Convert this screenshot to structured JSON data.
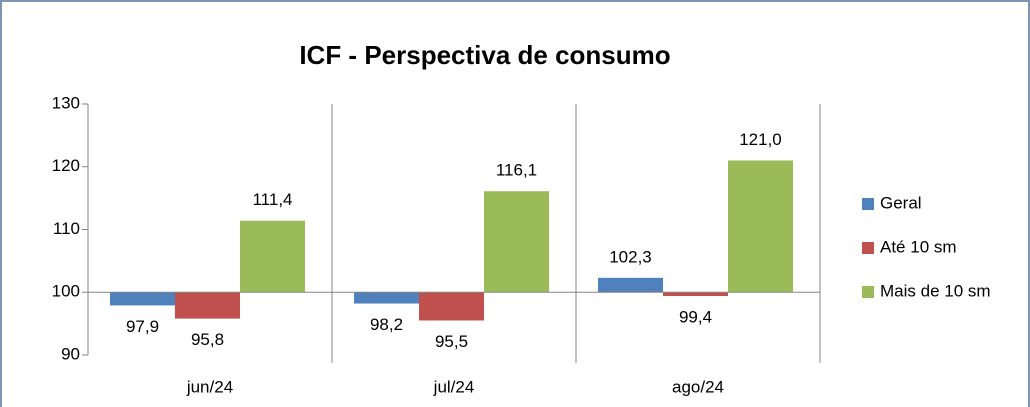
{
  "chart_data": {
    "type": "bar",
    "title": "ICF - Perspectiva de consumo",
    "categories": [
      "jun/24",
      "jul/24",
      "ago/24"
    ],
    "series": [
      {
        "name": "Geral",
        "color": "#4f81bd",
        "values": [
          97.9,
          98.2,
          102.3
        ],
        "value_labels": [
          "97,9",
          "98,2",
          "102,3"
        ]
      },
      {
        "name": "Até 10 sm",
        "color": "#c0504d",
        "values": [
          95.8,
          95.5,
          99.4
        ],
        "value_labels": [
          "95,8",
          "95,5",
          "99,4"
        ]
      },
      {
        "name": "Mais de 10 sm",
        "color": "#9bbb59",
        "values": [
          111.4,
          116.1,
          121.0
        ],
        "value_labels": [
          "111,4",
          "116,1",
          "121,0"
        ]
      }
    ],
    "ylim": [
      90,
      130
    ],
    "yticks": [
      90,
      100,
      110,
      120,
      130
    ],
    "baseline": 100,
    "legend": "right"
  }
}
